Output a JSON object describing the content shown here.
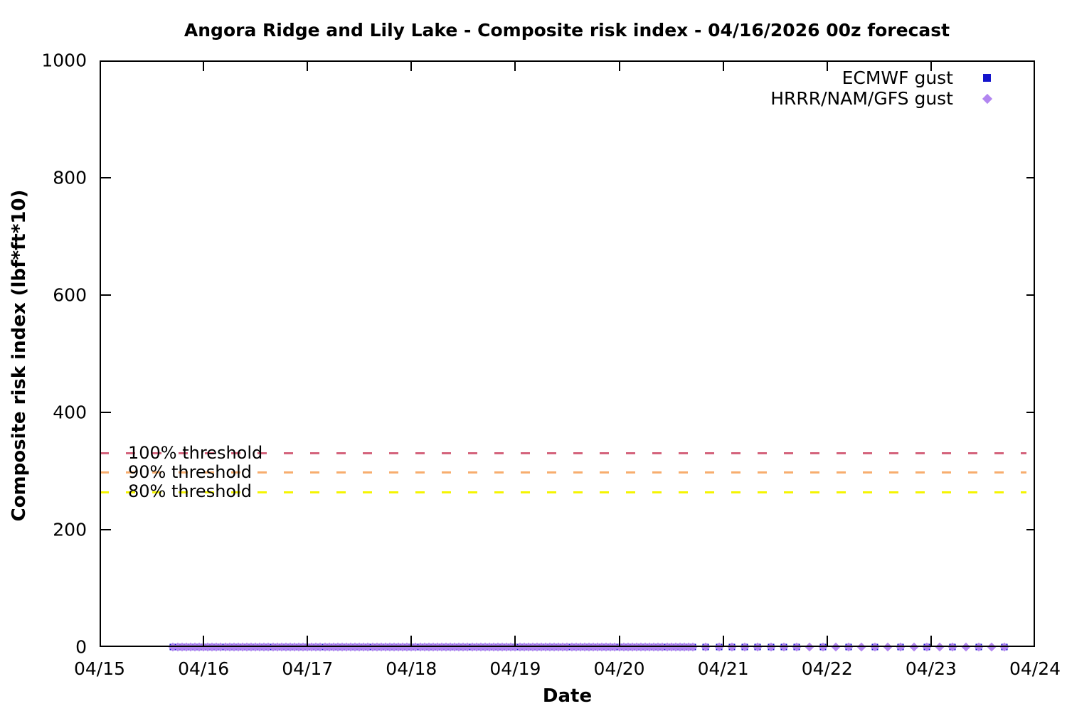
{
  "chart_data": {
    "type": "scatter",
    "title": "Angora Ridge and Lily Lake - Composite risk index - 04/16/2026 00z forecast",
    "xlabel": "Date",
    "ylabel": "Composite risk index (lbf*ft*10)",
    "background_color": "#ffffff",
    "grid": false,
    "x_axis": {
      "tick_labels": [
        "04/15",
        "04/16",
        "04/17",
        "04/18",
        "04/19",
        "04/20",
        "04/21",
        "04/22",
        "04/23",
        "04/24"
      ],
      "range_days": [
        0,
        9
      ],
      "note": "day 0 = 04/15 00z"
    },
    "y_axis": {
      "ticks": [
        0,
        200,
        400,
        600,
        800,
        1000
      ],
      "range": [
        0,
        1000
      ]
    },
    "legend": {
      "position": "top-right-inside",
      "entries": [
        {
          "label": "ECMWF gust",
          "marker": "square",
          "color": "#1414cc"
        },
        {
          "label": "HRRR/NAM/GFS gust",
          "marker": "diamond",
          "color": "#b286f0"
        }
      ]
    },
    "thresholds": [
      {
        "label": "100% threshold",
        "value": 330,
        "color": "#d4637c",
        "style": "dashed"
      },
      {
        "label": "90% threshold",
        "value": 297,
        "color": "#f7ad6e",
        "style": "dashed"
      },
      {
        "label": "80% threshold",
        "value": 264,
        "color": "#f5f500",
        "style": "dashed"
      }
    ],
    "series": [
      {
        "name": "ECMWF gust",
        "marker": "square",
        "color": "#1414cc",
        "constant_value": 0,
        "segments": [
          {
            "start_day": 0.7083,
            "end_day": 5.7083,
            "interval_hours": 1,
            "value": 0
          },
          {
            "start_day": 5.8333,
            "end_day": 6.7083,
            "interval_hours": 3,
            "value": 0
          },
          {
            "start_day": 6.9583,
            "end_day": 8.7083,
            "interval_hours": 6,
            "value": 0
          }
        ]
      },
      {
        "name": "HRRR/NAM/GFS gust",
        "marker": "diamond",
        "color": "#b286f0",
        "constant_value": 0,
        "segments": [
          {
            "start_day": 0.7083,
            "end_day": 5.7083,
            "interval_hours": 1,
            "value": 0
          },
          {
            "start_day": 5.8333,
            "end_day": 8.7083,
            "interval_hours": 3,
            "value": 0
          }
        ]
      }
    ]
  }
}
